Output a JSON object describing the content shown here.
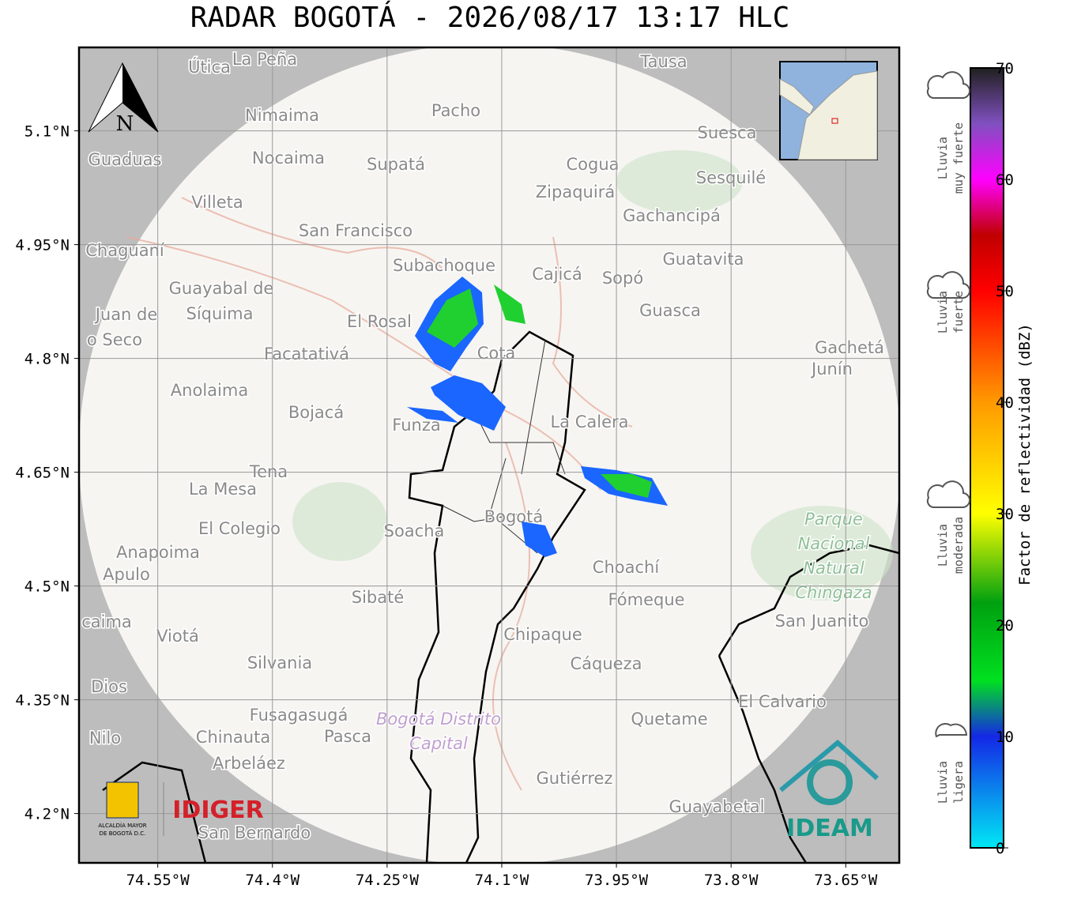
{
  "title": "RADAR BOGOTÁ - 2026/08/17 13:17 HLC",
  "map": {
    "xlim": [
      -74.653,
      -73.58
    ],
    "ylim": [
      4.135,
      5.21
    ],
    "xticks": [
      {
        "value": -74.55,
        "label": "74.55°W"
      },
      {
        "value": -74.4,
        "label": "74.4°W"
      },
      {
        "value": -74.25,
        "label": "74.25°W"
      },
      {
        "value": -74.1,
        "label": "74.1°W"
      },
      {
        "value": -73.95,
        "label": "73.95°W"
      },
      {
        "value": -73.8,
        "label": "73.8°W"
      },
      {
        "value": -73.65,
        "label": "73.65°W"
      }
    ],
    "yticks": [
      {
        "value": 5.1,
        "label": "5.1°N"
      },
      {
        "value": 4.95,
        "label": "4.95°N"
      },
      {
        "value": 4.8,
        "label": "4.8°N"
      },
      {
        "value": 4.65,
        "label": "4.65°N"
      },
      {
        "value": 4.5,
        "label": "4.5°N"
      },
      {
        "value": 4.35,
        "label": "4.35°N"
      },
      {
        "value": 4.2,
        "label": "4.2°N"
      }
    ],
    "grid": true,
    "north": "N",
    "places": [
      "Útica",
      "La Peña",
      "Tausa",
      "Pacho",
      "Nimaima",
      "Guaduas",
      "Nocaima",
      "Supatá",
      "Cogua",
      "Suesca",
      "Sesquilé",
      "Zipaquirá",
      "Villeta",
      "Gachancipá",
      "San Francisco",
      "Chaguaní",
      "Guatavita",
      "Subachoque",
      "Cajicá",
      "Sopó",
      "Guayabal de",
      "Síquima",
      "Guasca",
      "El Rosal",
      "Juan de",
      "o Seco",
      "Cota",
      "Gachetá",
      "Junín",
      "Facatativá",
      "Anolaima",
      "Bojacá",
      "La Calera",
      "Funza",
      "Tena",
      "La Mesa",
      "Bogotá",
      "El Colegio",
      "Soacha",
      "Anapoima",
      "Apulo",
      "Choachí",
      "Sibaté",
      "Fómeque",
      "San Juanito",
      "caima",
      "Viotá",
      "Chipaque",
      "Silvania",
      "Cáqueza",
      "Dios",
      "El Calvario",
      "Fusagasugá",
      "Quetame",
      "Nilo",
      "Chinauta",
      "Pasca",
      "Arbeláez",
      "Gutiérrez",
      "Guayabetal",
      "San Bernardo"
    ],
    "park": [
      "Parque",
      "Nacional",
      "Natural",
      "Chingaza"
    ],
    "district": [
      "Bogotá Distrito",
      "Capital"
    ]
  },
  "logos": {
    "alcaldia": [
      "ALCALDÍA MAYOR",
      "DE BOGOTÁ D.C."
    ],
    "idiger": "IDIGER",
    "ideam": "IDEAM"
  },
  "colorbar": {
    "label": "Factor de reflectividad (dBZ)",
    "lim": [
      0,
      70
    ],
    "ticks": [
      0,
      10,
      20,
      30,
      40,
      50,
      60,
      70
    ],
    "stops": [
      {
        "value": 0,
        "color": "#00e8f4"
      },
      {
        "value": 10,
        "color": "#1428e6"
      },
      {
        "value": 15,
        "color": "#00e020"
      },
      {
        "value": 22,
        "color": "#00a010"
      },
      {
        "value": 30,
        "color": "#ffff00"
      },
      {
        "value": 40,
        "color": "#ff9900"
      },
      {
        "value": 50,
        "color": "#ff0000"
      },
      {
        "value": 55,
        "color": "#c00000"
      },
      {
        "value": 60,
        "color": "#ff00ff"
      },
      {
        "value": 65,
        "color": "#8050c0"
      },
      {
        "value": 70,
        "color": "#202020"
      }
    ],
    "levels": [
      [
        "Lluvia",
        "muy fuerte"
      ],
      [
        "Lluvia",
        "fuerte"
      ],
      [
        "Lluvia",
        "moderada"
      ],
      [
        "Lluvia",
        "ligera"
      ]
    ]
  }
}
